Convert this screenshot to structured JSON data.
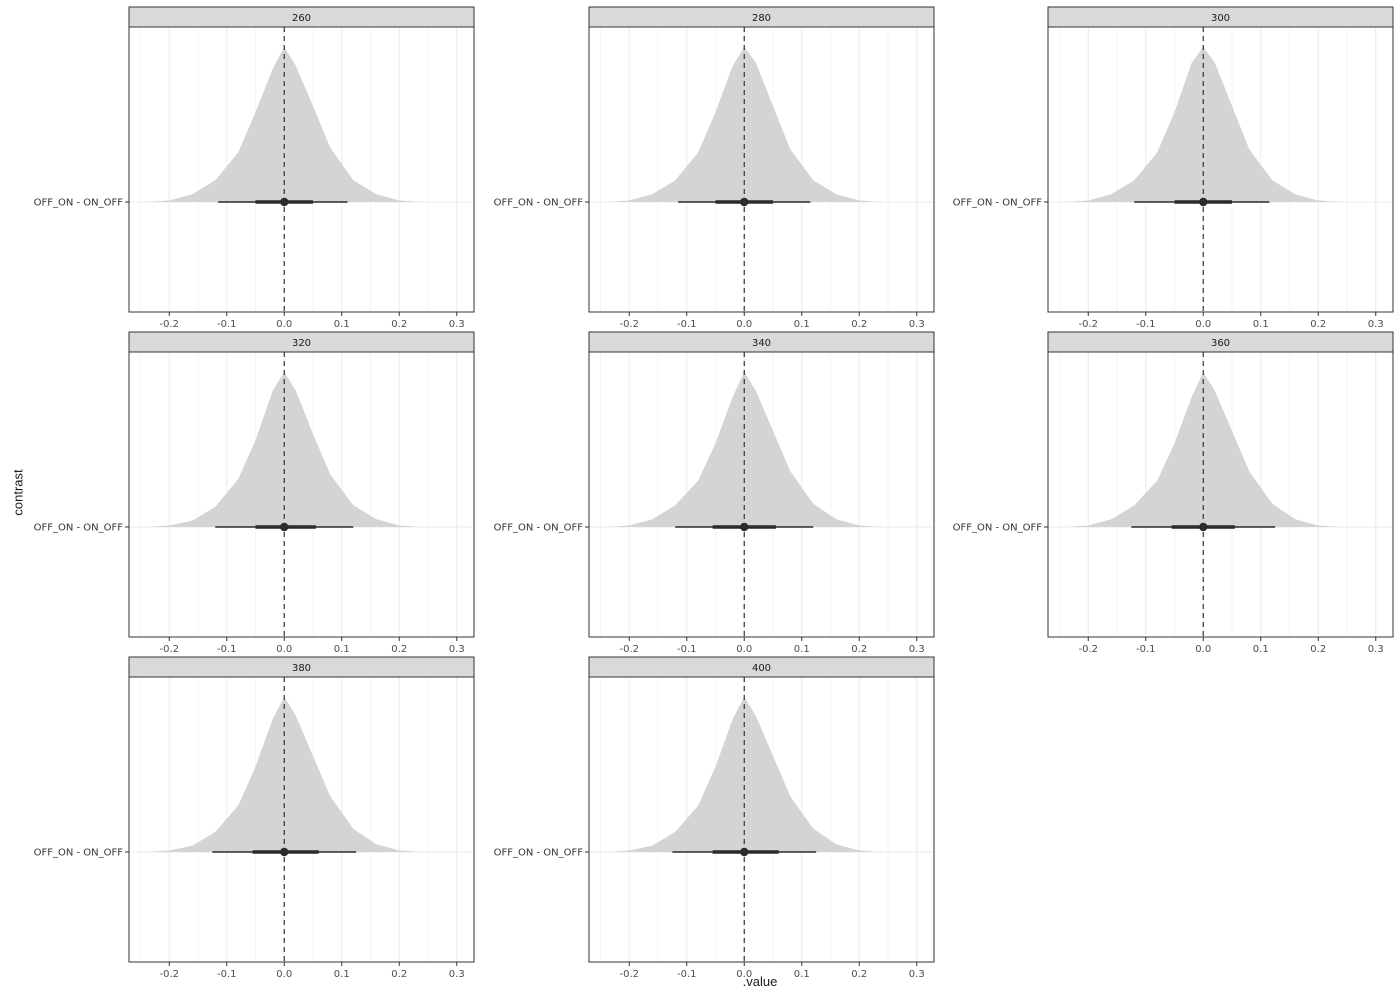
{
  "chart_data": {
    "type": "area",
    "subtype": "half-eye posterior density with point interval (faceted)",
    "xlabel": ".value",
    "ylabel": "contrast",
    "category": "OFF_ON - ON_OFF",
    "xlim": [
      -0.27,
      0.33
    ],
    "x_ticks": [
      -0.2,
      -0.1,
      0.0,
      0.1,
      0.2,
      0.3
    ],
    "x_tick_labels": [
      "-0.2",
      "-0.1",
      "0.0",
      "0.1",
      "0.2",
      "0.3"
    ],
    "reference_line": 0,
    "grid": true,
    "colors": {
      "density": "#d4d4d4",
      "interval": "#2b2b2b",
      "strip": "#d9d9d9",
      "grid": "#ebebeb"
    },
    "facets": [
      {
        "label": "260",
        "point": 0.0,
        "inner": [
          -0.05,
          0.05
        ],
        "outer": [
          -0.115,
          0.11
        ],
        "density_x": [
          -0.24,
          -0.2,
          -0.16,
          -0.12,
          -0.08,
          -0.05,
          -0.02,
          0.0,
          0.02,
          0.05,
          0.08,
          0.12,
          0.16,
          0.2,
          0.24
        ],
        "density_y": [
          0.0,
          0.01,
          0.05,
          0.14,
          0.32,
          0.58,
          0.86,
          1.0,
          0.88,
          0.62,
          0.35,
          0.14,
          0.05,
          0.01,
          0.0
        ]
      },
      {
        "label": "280",
        "point": 0.0,
        "inner": [
          -0.05,
          0.05
        ],
        "outer": [
          -0.115,
          0.115
        ],
        "density_x": [
          -0.24,
          -0.2,
          -0.16,
          -0.12,
          -0.08,
          -0.05,
          -0.02,
          0.0,
          0.02,
          0.05,
          0.08,
          0.12,
          0.16,
          0.2,
          0.24
        ],
        "density_y": [
          0.0,
          0.01,
          0.05,
          0.14,
          0.32,
          0.58,
          0.88,
          1.0,
          0.9,
          0.62,
          0.34,
          0.14,
          0.05,
          0.01,
          0.0
        ]
      },
      {
        "label": "300",
        "point": 0.0,
        "inner": [
          -0.05,
          0.05
        ],
        "outer": [
          -0.12,
          0.115
        ],
        "density_x": [
          -0.24,
          -0.2,
          -0.16,
          -0.12,
          -0.08,
          -0.05,
          -0.02,
          0.0,
          0.02,
          0.05,
          0.08,
          0.12,
          0.16,
          0.2,
          0.24
        ],
        "density_y": [
          0.0,
          0.01,
          0.05,
          0.14,
          0.32,
          0.58,
          0.9,
          1.0,
          0.9,
          0.62,
          0.34,
          0.14,
          0.05,
          0.01,
          0.0
        ]
      },
      {
        "label": "320",
        "point": 0.0,
        "inner": [
          -0.05,
          0.055
        ],
        "outer": [
          -0.12,
          0.12
        ],
        "density_x": [
          -0.24,
          -0.2,
          -0.16,
          -0.12,
          -0.08,
          -0.05,
          -0.02,
          0.0,
          0.02,
          0.05,
          0.08,
          0.12,
          0.16,
          0.2,
          0.24
        ],
        "density_y": [
          0.0,
          0.01,
          0.04,
          0.13,
          0.31,
          0.56,
          0.88,
          1.0,
          0.88,
          0.6,
          0.34,
          0.14,
          0.05,
          0.01,
          0.0
        ]
      },
      {
        "label": "340",
        "point": 0.0,
        "inner": [
          -0.055,
          0.055
        ],
        "outer": [
          -0.12,
          0.12
        ],
        "density_x": [
          -0.24,
          -0.2,
          -0.16,
          -0.12,
          -0.08,
          -0.05,
          -0.02,
          0.0,
          0.02,
          0.05,
          0.08,
          0.12,
          0.16,
          0.2,
          0.24
        ],
        "density_y": [
          0.0,
          0.01,
          0.05,
          0.14,
          0.3,
          0.54,
          0.84,
          1.0,
          0.88,
          0.62,
          0.36,
          0.15,
          0.05,
          0.01,
          0.0
        ]
      },
      {
        "label": "360",
        "point": 0.0,
        "inner": [
          -0.055,
          0.055
        ],
        "outer": [
          -0.125,
          0.125
        ],
        "density_x": [
          -0.24,
          -0.2,
          -0.16,
          -0.12,
          -0.08,
          -0.05,
          -0.02,
          0.0,
          0.02,
          0.05,
          0.08,
          0.12,
          0.16,
          0.2,
          0.24
        ],
        "density_y": [
          0.0,
          0.01,
          0.05,
          0.14,
          0.3,
          0.54,
          0.84,
          1.0,
          0.88,
          0.62,
          0.36,
          0.15,
          0.05,
          0.01,
          0.0
        ]
      },
      {
        "label": "380",
        "point": 0.0,
        "inner": [
          -0.055,
          0.06
        ],
        "outer": [
          -0.125,
          0.125
        ],
        "density_x": [
          -0.24,
          -0.2,
          -0.16,
          -0.12,
          -0.08,
          -0.05,
          -0.02,
          0.0,
          0.02,
          0.05,
          0.08,
          0.12,
          0.16,
          0.2,
          0.24
        ],
        "density_y": [
          0.0,
          0.01,
          0.04,
          0.13,
          0.3,
          0.55,
          0.86,
          1.0,
          0.88,
          0.62,
          0.36,
          0.15,
          0.05,
          0.01,
          0.0
        ]
      },
      {
        "label": "400",
        "point": 0.0,
        "inner": [
          -0.055,
          0.06
        ],
        "outer": [
          -0.125,
          0.125
        ],
        "density_x": [
          -0.24,
          -0.2,
          -0.16,
          -0.12,
          -0.08,
          -0.05,
          -0.02,
          0.0,
          0.02,
          0.05,
          0.08,
          0.12,
          0.16,
          0.2,
          0.24
        ],
        "density_y": [
          0.0,
          0.01,
          0.04,
          0.13,
          0.3,
          0.55,
          0.86,
          1.0,
          0.88,
          0.62,
          0.36,
          0.15,
          0.05,
          0.01,
          0.0
        ]
      }
    ]
  }
}
